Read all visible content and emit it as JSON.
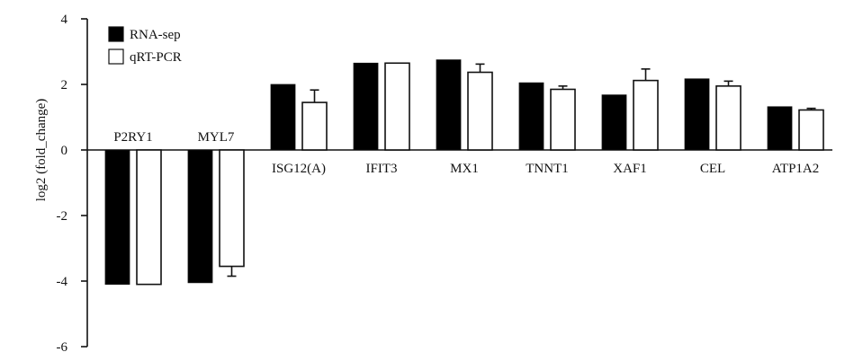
{
  "chart_data": {
    "type": "bar",
    "ylabel": "log2 (fold_change)",
    "ylim": [
      -6,
      4
    ],
    "yticks": [
      4,
      2,
      0,
      -2,
      -4,
      -6
    ],
    "categories": [
      "P2RY1",
      "MYL7",
      "ISG12(A)",
      "IFIT3",
      "MX1",
      "TNNT1",
      "XAF1",
      "CEL",
      "ATP1A2"
    ],
    "series": [
      {
        "name": "RNA-sep",
        "color": "#000000",
        "fill": "solid",
        "values": [
          -4.1,
          -4.05,
          2.0,
          2.65,
          2.75,
          2.05,
          1.68,
          2.17,
          1.32
        ],
        "errors": [
          0,
          0,
          0,
          0,
          0,
          0,
          0,
          0,
          0
        ]
      },
      {
        "name": "qRT-PCR",
        "color": "#ffffff",
        "fill": "outline",
        "values": [
          -4.1,
          -3.55,
          1.45,
          2.65,
          2.37,
          1.85,
          2.12,
          1.95,
          1.22
        ],
        "errors": [
          0,
          0.3,
          0.38,
          0,
          0.25,
          0.1,
          0.35,
          0.15,
          0.05
        ]
      }
    ],
    "legend_position": "top-left",
    "grid": false
  }
}
